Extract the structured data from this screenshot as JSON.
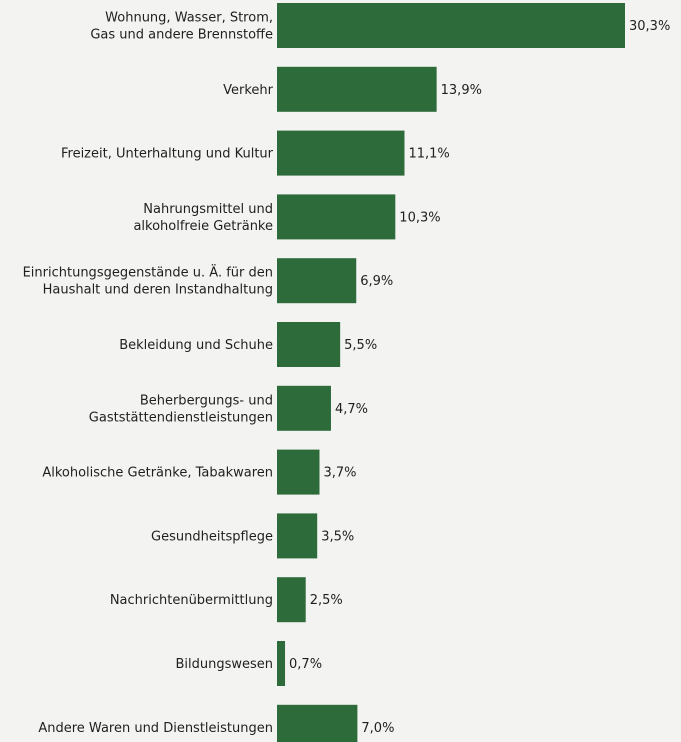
{
  "chart_data": {
    "type": "bar",
    "orientation": "horizontal",
    "categories": [
      "Wohnung, Wasser, Strom,|Gas und andere Brennstoffe",
      "Verkehr",
      "Freizeit, Unterhaltung und Kultur",
      "Nahrungsmittel und|alkoholfreie Getränke",
      "Einrichtungsgegenstände u. Ä. für den|Haushalt und deren Instandhaltung",
      "Bekleidung und Schuhe",
      "Beherbergungs- und|Gaststättendienstleistungen",
      "Alkoholische Getränke, Tabakwaren",
      "Gesundheitspflege",
      "Nachrichtenübermittlung",
      "Bildungswesen",
      "Andere Waren und Dienstleistungen"
    ],
    "values": [
      30.3,
      13.9,
      11.1,
      10.3,
      6.9,
      5.5,
      4.7,
      3.7,
      3.5,
      2.5,
      0.7,
      7.0
    ],
    "value_labels": [
      "30,3%",
      "13,9%",
      "11,1%",
      "10,3%",
      "6,9%",
      "5,5%",
      "4,7%",
      "3,7%",
      "3,5%",
      "2,5%",
      "0,7%",
      "7,0%"
    ],
    "bar_color": "#2e6b3b",
    "xlim": [
      0,
      30.3
    ],
    "grid": false,
    "legend": "none"
  }
}
